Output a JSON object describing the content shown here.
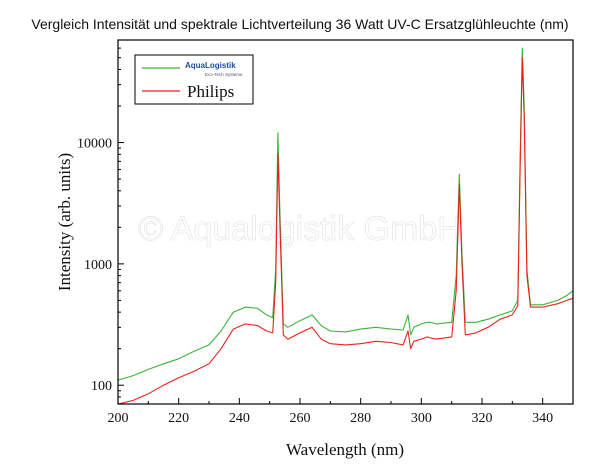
{
  "title": "Vergleich Intensität und spektrale Lichtverteilung 36 Watt UV-C Ersatzglühleuchte (nm)",
  "watermark": "© Aqualogistik GmbH",
  "colors": {
    "green": "#3cb43c",
    "red": "#e8231e",
    "axis": "#000000"
  },
  "chart_data": {
    "type": "line",
    "xlabel": "Wavelength (nm)",
    "ylabel": "Intensity (arb. units)",
    "xlim": [
      200,
      350
    ],
    "ylim": [
      70,
      70000
    ],
    "yscale": "log",
    "grid": false,
    "legend_position": "top-left",
    "xticks": [
      200,
      220,
      240,
      260,
      280,
      300,
      320,
      340
    ],
    "yticks": [
      100,
      1000,
      10000
    ],
    "legend": {
      "logo_text": "AquaLogistik",
      "logo_subtext": "Eco-Tech Systeme",
      "red_label": "Philips"
    },
    "series": [
      {
        "color": "green",
        "x": [
          200,
          205,
          210,
          215,
          220,
          225,
          230,
          234,
          238,
          242,
          246,
          249,
          251,
          252,
          252.7,
          253.4,
          254.5,
          256,
          260,
          264,
          267,
          270,
          275,
          280,
          285,
          290,
          294,
          295.6,
          296.5,
          297.5,
          300,
          302,
          303,
          305,
          310,
          311.5,
          312.5,
          313.4,
          314.5,
          318,
          322,
          326,
          330,
          331.8,
          332.6,
          333.3,
          333.9,
          334.8,
          336,
          340,
          345,
          348,
          350
        ],
        "y": [
          110,
          120,
          135,
          150,
          165,
          190,
          215,
          280,
          400,
          440,
          430,
          380,
          360,
          900,
          12000,
          2500,
          320,
          300,
          340,
          380,
          310,
          280,
          275,
          290,
          300,
          290,
          285,
          380,
          260,
          300,
          320,
          330,
          330,
          320,
          330,
          800,
          5500,
          1200,
          330,
          330,
          350,
          380,
          410,
          500,
          8000,
          60000,
          20000,
          900,
          460,
          460,
          500,
          550,
          600
        ]
      },
      {
        "color": "red",
        "x": [
          200,
          205,
          210,
          215,
          220,
          225,
          230,
          234,
          238,
          242,
          246,
          249,
          251,
          252,
          252.7,
          253.4,
          254.5,
          256,
          260,
          264,
          267,
          270,
          275,
          280,
          285,
          290,
          294,
          295.6,
          296.5,
          297.5,
          300,
          302,
          303,
          305,
          310,
          311.5,
          312.5,
          313.4,
          314.5,
          318,
          322,
          326,
          330,
          331.8,
          332.6,
          333.3,
          333.9,
          334.8,
          336,
          340,
          345,
          348,
          350
        ],
        "y": [
          70,
          75,
          85,
          100,
          115,
          130,
          150,
          200,
          290,
          320,
          310,
          280,
          270,
          700,
          8000,
          2000,
          260,
          240,
          270,
          300,
          240,
          220,
          215,
          220,
          230,
          225,
          215,
          280,
          200,
          230,
          240,
          250,
          245,
          240,
          250,
          600,
          4500,
          1000,
          260,
          270,
          300,
          350,
          380,
          450,
          6500,
          50000,
          16000,
          800,
          440,
          440,
          470,
          500,
          520
        ]
      }
    ]
  }
}
